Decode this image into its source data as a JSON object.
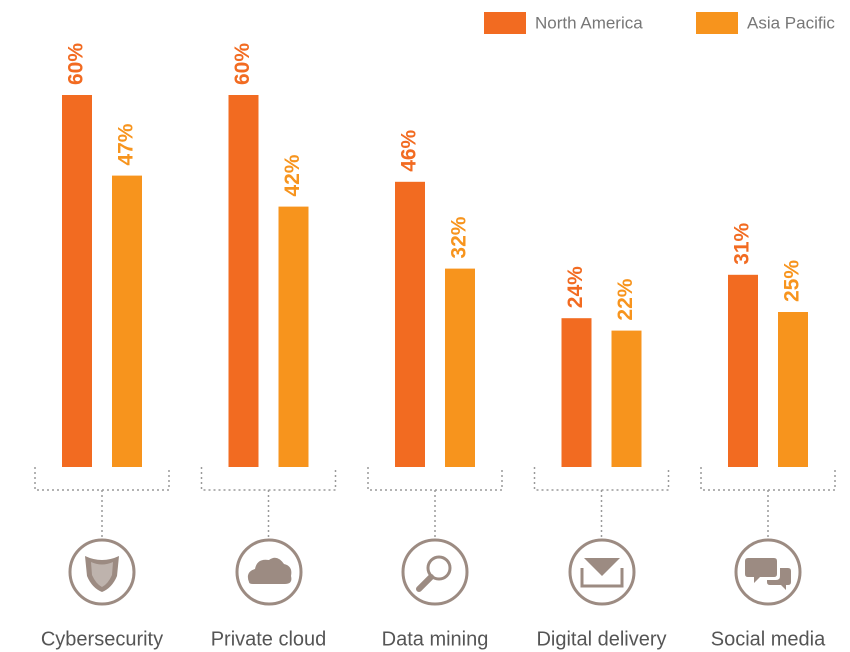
{
  "chart_data": {
    "type": "bar",
    "categories": [
      "Cybersecurity",
      "Private cloud",
      "Data mining",
      "Digital delivery",
      "Social media"
    ],
    "series": [
      {
        "name": "North America",
        "color": "#f26b21",
        "values": [
          60,
          60,
          46,
          24,
          31
        ],
        "value_labels": [
          "60%",
          "60%",
          "46%",
          "24%",
          "31%"
        ]
      },
      {
        "name": "Asia Pacific",
        "color": "#f7941d",
        "values": [
          47,
          42,
          32,
          22,
          25
        ],
        "value_labels": [
          "47%",
          "42%",
          "32%",
          "22%",
          "25%"
        ]
      }
    ],
    "legend": "top-right"
  }
}
